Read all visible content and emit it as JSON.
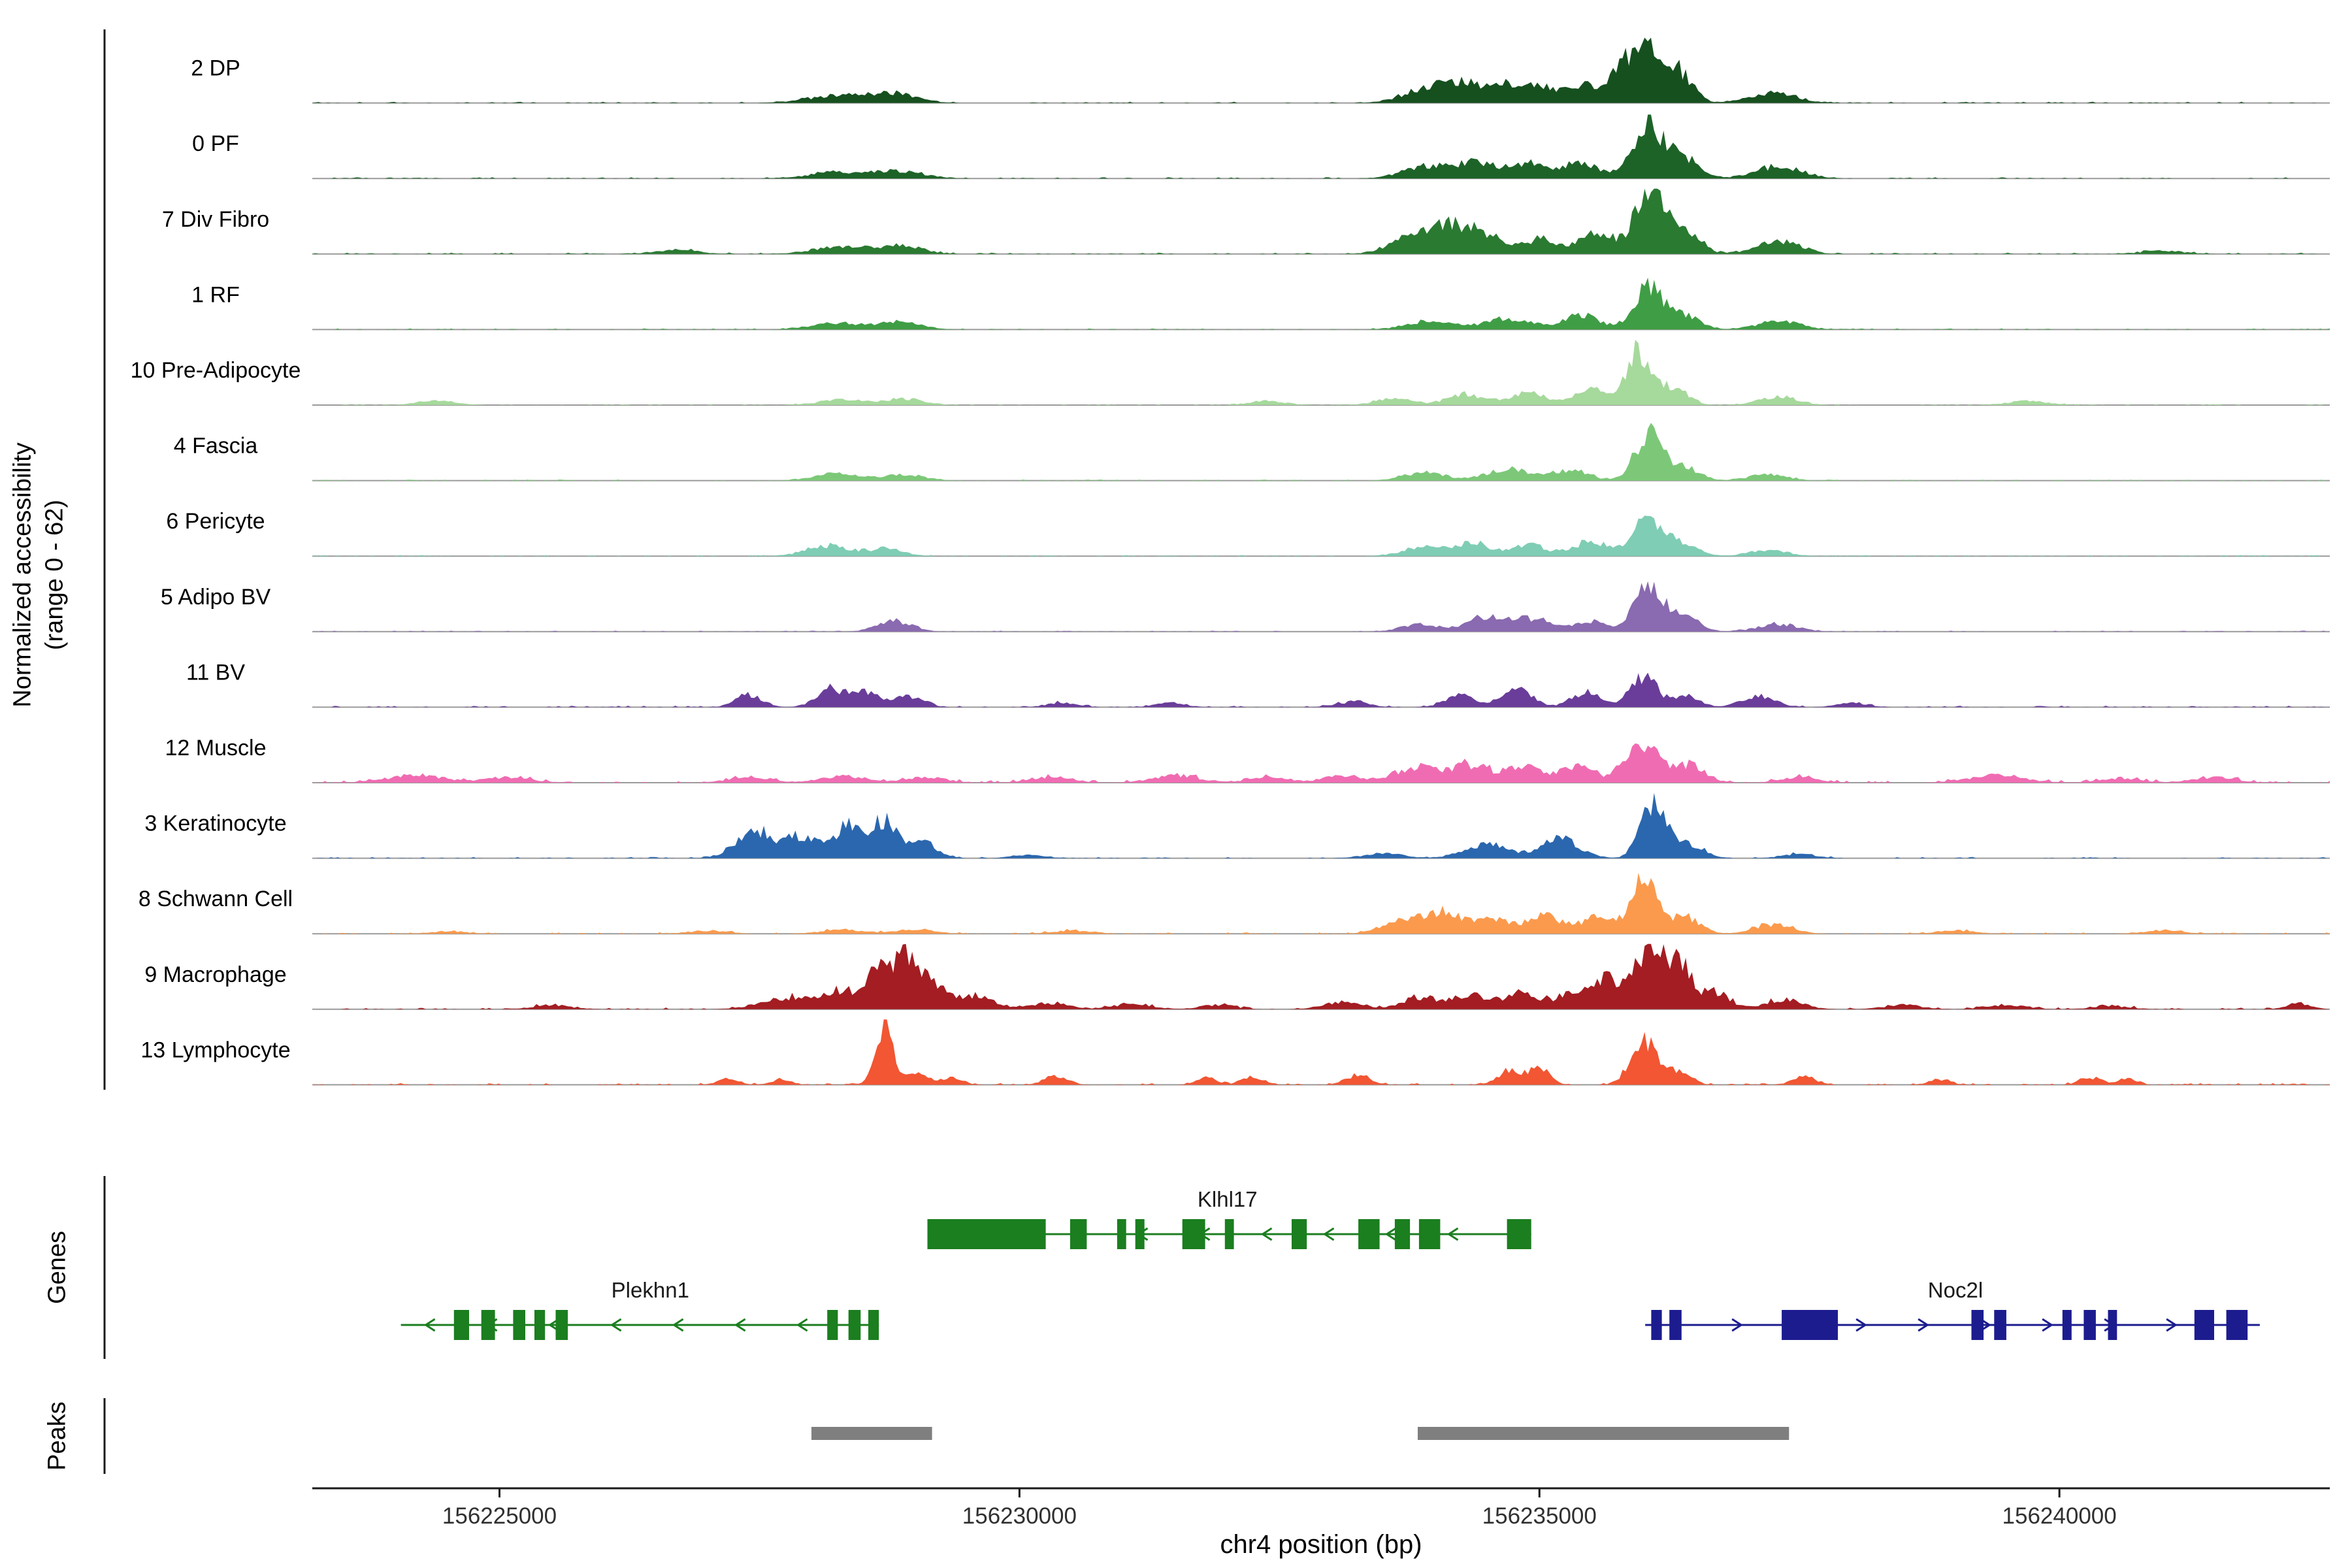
{
  "figure": {
    "y_axis_label_line1": "Normalized accessibility",
    "y_axis_label_line2": "(range 0 - 62)",
    "genes_section_label": "Genes",
    "peaks_section_label": "Peaks",
    "x_axis_title": "chr4 position (bp)"
  },
  "chart_data": {
    "type": "area",
    "variant": "genome-browser-accessibility-tracks",
    "chromosome": "chr4",
    "x_domain": [
      156223200,
      156242600
    ],
    "x_ticks": [
      156225000,
      156230000,
      156235000,
      156240000
    ],
    "track_value_range": [
      0,
      62
    ],
    "axis_color": "#1a1a1a",
    "baseline_color": "#9a9a9a",
    "tick_label_color": "#303030",
    "peak_color": "#7f7f7f",
    "tracks": [
      {
        "label": "2 DP",
        "color": "#16501f",
        "noise": 1.2,
        "bumps": [
          [
            156228250,
            7,
            280
          ],
          [
            156228800,
            8,
            220
          ],
          [
            156233900,
            13,
            220
          ],
          [
            156234250,
            16,
            160
          ],
          [
            156234700,
            18,
            200
          ],
          [
            156235100,
            12,
            160
          ],
          [
            156235500,
            16,
            160
          ],
          [
            156235800,
            24,
            120
          ],
          [
            156236050,
            56,
            140
          ],
          [
            156236350,
            26,
            130
          ],
          [
            156237250,
            10,
            220
          ]
        ]
      },
      {
        "label": "0 PF",
        "color": "#1d6328",
        "noise": 1.2,
        "bumps": [
          [
            156228250,
            6,
            260
          ],
          [
            156228850,
            7,
            220
          ],
          [
            156233900,
            11,
            220
          ],
          [
            156234400,
            15,
            200
          ],
          [
            156234900,
            13,
            180
          ],
          [
            156235400,
            15,
            170
          ],
          [
            156236050,
            50,
            150
          ],
          [
            156236400,
            18,
            140
          ],
          [
            156237300,
            11,
            220
          ]
        ]
      },
      {
        "label": "7 Div Fibro",
        "color": "#2a7a31",
        "noise": 1.3,
        "bumps": [
          [
            156226700,
            4,
            200
          ],
          [
            156228250,
            7,
            240
          ],
          [
            156228850,
            9,
            200
          ],
          [
            156233750,
            16,
            200
          ],
          [
            156234100,
            26,
            160
          ],
          [
            156234450,
            20,
            160
          ],
          [
            156235000,
            14,
            180
          ],
          [
            156235550,
            22,
            150
          ],
          [
            156236050,
            58,
            140
          ],
          [
            156236400,
            24,
            140
          ],
          [
            156237300,
            12,
            200
          ],
          [
            156241000,
            3,
            200
          ]
        ]
      },
      {
        "label": "1 RF",
        "color": "#3f9e45",
        "noise": 1.0,
        "bumps": [
          [
            156228250,
            6,
            240
          ],
          [
            156228850,
            7,
            200
          ],
          [
            156233950,
            8,
            220
          ],
          [
            156234700,
            10,
            220
          ],
          [
            156235400,
            13,
            180
          ],
          [
            156236050,
            38,
            140
          ],
          [
            156236400,
            14,
            140
          ],
          [
            156237300,
            8,
            200
          ]
        ]
      },
      {
        "label": "10 Pre-Adipocyte",
        "color": "#a6d99c",
        "noise": 1.0,
        "bumps": [
          [
            156224400,
            4,
            180
          ],
          [
            156228300,
            5,
            220
          ],
          [
            156228900,
            6,
            180
          ],
          [
            156232400,
            4,
            160
          ],
          [
            156233600,
            6,
            180
          ],
          [
            156234300,
            10,
            180
          ],
          [
            156234900,
            11,
            170
          ],
          [
            156235500,
            15,
            150
          ],
          [
            156235950,
            52,
            120
          ],
          [
            156236300,
            17,
            130
          ],
          [
            156237300,
            8,
            180
          ],
          [
            156239700,
            4,
            180
          ]
        ]
      },
      {
        "label": "4 Fascia",
        "color": "#7cc878",
        "noise": 1.0,
        "bumps": [
          [
            156228250,
            7,
            220
          ],
          [
            156228900,
            6,
            180
          ],
          [
            156233900,
            8,
            200
          ],
          [
            156234700,
            11,
            200
          ],
          [
            156235300,
            10,
            170
          ],
          [
            156236050,
            44,
            130
          ],
          [
            156236400,
            12,
            140
          ],
          [
            156237200,
            6,
            180
          ]
        ]
      },
      {
        "label": "6 Pericyte",
        "color": "#7fcdb4",
        "noise": 1.0,
        "bumps": [
          [
            156228150,
            10,
            200
          ],
          [
            156228700,
            7,
            170
          ],
          [
            156233900,
            9,
            200
          ],
          [
            156234350,
            12,
            170
          ],
          [
            156234900,
            11,
            170
          ],
          [
            156235500,
            14,
            160
          ],
          [
            156236050,
            36,
            140
          ],
          [
            156236400,
            12,
            140
          ],
          [
            156237200,
            6,
            180
          ]
        ]
      },
      {
        "label": "5 Adipo BV",
        "color": "#8a6ab0",
        "noise": 1.0,
        "bumps": [
          [
            156228800,
            10,
            160
          ],
          [
            156233850,
            7,
            180
          ],
          [
            156234500,
            14,
            190
          ],
          [
            156234950,
            12,
            160
          ],
          [
            156235500,
            10,
            160
          ],
          [
            156236050,
            46,
            130
          ],
          [
            156236400,
            14,
            140
          ],
          [
            156237300,
            7,
            190
          ]
        ]
      },
      {
        "label": "11 BV",
        "color": "#6a3d9a",
        "noise": 1.5,
        "bumps": [
          [
            156227400,
            12,
            120
          ],
          [
            156228200,
            18,
            140
          ],
          [
            156228550,
            13,
            120
          ],
          [
            156228950,
            11,
            130
          ],
          [
            156230400,
            4,
            140
          ],
          [
            156231450,
            4,
            140
          ],
          [
            156233200,
            5,
            150
          ],
          [
            156234250,
            11,
            150
          ],
          [
            156234800,
            16,
            140
          ],
          [
            156235450,
            13,
            140
          ],
          [
            156236000,
            28,
            130
          ],
          [
            156236400,
            11,
            130
          ],
          [
            156237100,
            11,
            150
          ],
          [
            156238000,
            4,
            140
          ]
        ]
      },
      {
        "label": "12 Muscle",
        "color": "#f06cb2",
        "noise": 2.2,
        "bumps": [
          [
            156224200,
            7,
            280
          ],
          [
            156225100,
            5,
            220
          ],
          [
            156227400,
            5,
            200
          ],
          [
            156228300,
            6,
            220
          ],
          [
            156229100,
            5,
            200
          ],
          [
            156230300,
            5,
            200
          ],
          [
            156231500,
            7,
            220
          ],
          [
            156232400,
            5,
            180
          ],
          [
            156233100,
            7,
            180
          ],
          [
            156233850,
            14,
            220
          ],
          [
            156234350,
            16,
            180
          ],
          [
            156234850,
            14,
            170
          ],
          [
            156235350,
            15,
            170
          ],
          [
            156236000,
            36,
            170
          ],
          [
            156236450,
            16,
            150
          ],
          [
            156237500,
            5,
            180
          ],
          [
            156239400,
            7,
            260
          ],
          [
            156240600,
            4,
            200
          ],
          [
            156241500,
            5,
            200
          ]
        ]
      },
      {
        "label": "3 Keratinocyte",
        "color": "#2b67ae",
        "noise": 1.2,
        "bumps": [
          [
            156227450,
            26,
            180
          ],
          [
            156227900,
            20,
            150
          ],
          [
            156228350,
            30,
            150
          ],
          [
            156228700,
            33,
            120
          ],
          [
            156229050,
            16,
            140
          ],
          [
            156230100,
            3,
            150
          ],
          [
            156233500,
            5,
            180
          ],
          [
            156234500,
            13,
            220
          ],
          [
            156235200,
            18,
            180
          ],
          [
            156236100,
            55,
            120
          ],
          [
            156236450,
            13,
            140
          ],
          [
            156237500,
            4,
            160
          ]
        ]
      },
      {
        "label": "8 Schwann Cell",
        "color": "#fb9a4d",
        "noise": 1.3,
        "bumps": [
          [
            156224500,
            2,
            180
          ],
          [
            156227000,
            3,
            180
          ],
          [
            156228300,
            4,
            200
          ],
          [
            156229000,
            4,
            180
          ],
          [
            156230500,
            3,
            180
          ],
          [
            156233700,
            14,
            190
          ],
          [
            156234100,
            19,
            160
          ],
          [
            156234550,
            14,
            160
          ],
          [
            156235050,
            17,
            170
          ],
          [
            156235550,
            15,
            150
          ],
          [
            156236000,
            48,
            130
          ],
          [
            156236400,
            16,
            140
          ],
          [
            156237250,
            9,
            180
          ],
          [
            156239000,
            3,
            180
          ],
          [
            156241000,
            3,
            180
          ]
        ]
      },
      {
        "label": "9 Macrophage",
        "color": "#a31d22",
        "noise": 1.8,
        "bumps": [
          [
            156225500,
            4,
            180
          ],
          [
            156227800,
            11,
            260
          ],
          [
            156228300,
            16,
            180
          ],
          [
            156228650,
            34,
            110
          ],
          [
            156228900,
            55,
            95
          ],
          [
            156229150,
            28,
            110
          ],
          [
            156229550,
            13,
            180
          ],
          [
            156230300,
            6,
            180
          ],
          [
            156231100,
            5,
            180
          ],
          [
            156231900,
            4,
            160
          ],
          [
            156233100,
            7,
            180
          ],
          [
            156233850,
            11,
            180
          ],
          [
            156234350,
            13,
            180
          ],
          [
            156234850,
            16,
            160
          ],
          [
            156235350,
            18,
            150
          ],
          [
            156235650,
            30,
            110
          ],
          [
            156236050,
            58,
            140
          ],
          [
            156236350,
            38,
            120
          ],
          [
            156236700,
            16,
            130
          ],
          [
            156237350,
            9,
            180
          ],
          [
            156238500,
            4,
            180
          ],
          [
            156239500,
            4,
            180
          ],
          [
            156240500,
            3,
            180
          ],
          [
            156242300,
            6,
            110
          ]
        ]
      },
      {
        "label": "13 Lymphocyte",
        "color": "#f25633",
        "noise": 1.6,
        "bumps": [
          [
            156227200,
            6,
            100
          ],
          [
            156227700,
            5,
            90
          ],
          [
            156228700,
            60,
            85
          ],
          [
            156229000,
            12,
            100
          ],
          [
            156229350,
            7,
            100
          ],
          [
            156230350,
            8,
            110
          ],
          [
            156231800,
            7,
            100
          ],
          [
            156232250,
            8,
            100
          ],
          [
            156233250,
            9,
            110
          ],
          [
            156234700,
            13,
            110
          ],
          [
            156235000,
            16,
            100
          ],
          [
            156236000,
            46,
            120
          ],
          [
            156236350,
            13,
            110
          ],
          [
            156237550,
            8,
            110
          ],
          [
            156238850,
            5,
            100
          ],
          [
            156240300,
            7,
            100
          ],
          [
            156240650,
            6,
            90
          ]
        ]
      }
    ],
    "genes": [
      {
        "name": "Klhl17",
        "color": "#1b7e1f",
        "strand": "-",
        "row": 0,
        "start": 156229115,
        "end": 156234921,
        "label_bp": 156232000,
        "exons": [
          [
            156229115,
            156230253
          ],
          [
            156230487,
            156230647
          ],
          [
            156230939,
            156231026
          ],
          [
            156231114,
            156231202
          ],
          [
            156231566,
            156231785
          ],
          [
            156231975,
            156232062
          ],
          [
            156232617,
            156232763
          ],
          [
            156233259,
            156233463
          ],
          [
            156233609,
            156233755
          ],
          [
            156233842,
            156234046
          ],
          [
            156234688,
            156234921
          ]
        ]
      },
      {
        "name": "Plekhn1",
        "color": "#1b7e1f",
        "strand": "-",
        "row": 1,
        "start": 156224052,
        "end": 156228648,
        "label_bp": 156226450,
        "exons": [
          [
            156224562,
            156224708
          ],
          [
            156224825,
            156224956
          ],
          [
            156225131,
            156225248
          ],
          [
            156225336,
            156225438
          ],
          [
            156225540,
            156225657
          ],
          [
            156228152,
            156228254
          ],
          [
            156228356,
            156228473
          ],
          [
            156228546,
            156228648
          ]
        ]
      },
      {
        "name": "Noc2l",
        "color": "#1c1c8f",
        "strand": "+",
        "row": 1,
        "start": 156236017,
        "end": 156241927,
        "label_bp": 156239000,
        "exons": [
          [
            156236075,
            156236177
          ],
          [
            156236250,
            156236367
          ],
          [
            156237330,
            156237870
          ],
          [
            156239154,
            156239271
          ],
          [
            156239373,
            156239490
          ],
          [
            156240029,
            156240117
          ],
          [
            156240234,
            156240350
          ],
          [
            156240467,
            156240554
          ],
          [
            156241298,
            156241488
          ],
          [
            156241605,
            156241810
          ]
        ]
      }
    ],
    "peaks": [
      {
        "start": 156228000,
        "end": 156229160
      },
      {
        "start": 156233830,
        "end": 156237400
      }
    ]
  }
}
